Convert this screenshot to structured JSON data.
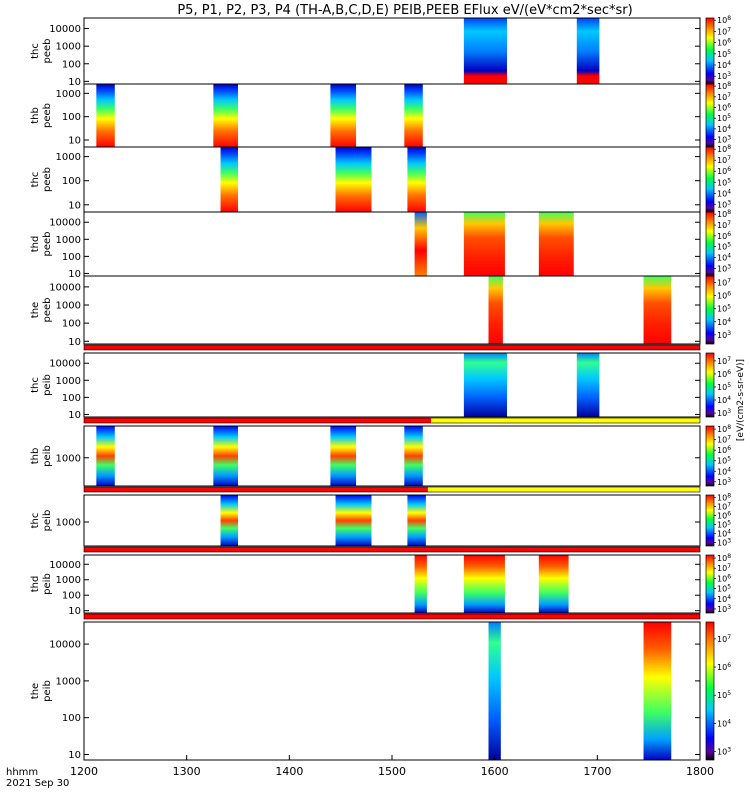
{
  "chart_data": {
    "type": "heatmap",
    "title": "P5, P1, P2, P3, P4 (TH-A,B,C,D,E) PEIB,PEEB EFlux eV/(eV*cm2*sec*sr)",
    "x_axis": {
      "range": [
        1200,
        1800
      ],
      "ticks": [
        "1200",
        "1300",
        "1400",
        "1500",
        "1600",
        "1700",
        "1800"
      ],
      "label_units": "hhmm",
      "label_date": "2021 Sep 30"
    },
    "colorbar_label": "[eV/(cm2-s-sr-eV)]",
    "panels": [
      {
        "name": "thc peeb",
        "probe": "thc",
        "product": "peeb",
        "has_bar": false,
        "y_ticks": [
          "10000",
          "1000",
          "100",
          "10"
        ],
        "y_range_log10": [
          0.85,
          4.6
        ],
        "cbar_ticks": [
          "10^8",
          "10^7",
          "10^6",
          "10^5",
          "10^4",
          "10^3"
        ],
        "cbar_range_log10": [
          2.3,
          8.2
        ],
        "blocks": [
          {
            "x0": 1570,
            "x1": 1612,
            "style": "peeb_hi"
          },
          {
            "x0": 1680,
            "x1": 1702,
            "style": "peeb_hi"
          }
        ]
      },
      {
        "name": "thb peeb",
        "probe": "thb",
        "product": "peeb",
        "has_bar": false,
        "y_ticks": [
          "1000",
          "100",
          "10"
        ],
        "y_range_log10": [
          0.7,
          3.4
        ],
        "cbar_ticks": [
          "10^8",
          "10^7",
          "10^6",
          "10^5",
          "10^4",
          "10^3"
        ],
        "cbar_range_log10": [
          2.3,
          8.2
        ],
        "blocks": [
          {
            "x0": 1212,
            "x1": 1230,
            "style": "peeb_full"
          },
          {
            "x0": 1326,
            "x1": 1350,
            "style": "peeb_full"
          },
          {
            "x0": 1440,
            "x1": 1465,
            "style": "peeb_full"
          },
          {
            "x0": 1512,
            "x1": 1530,
            "style": "peeb_full"
          }
        ]
      },
      {
        "name": "thc peeb",
        "probe": "thc",
        "product": "peeb",
        "has_bar": false,
        "y_ticks": [
          "1000",
          "100",
          "10"
        ],
        "y_range_log10": [
          0.7,
          3.4
        ],
        "cbar_ticks": [
          "10^8",
          "10^7",
          "10^6",
          "10^5",
          "10^4",
          "10^3"
        ],
        "cbar_range_log10": [
          2.3,
          8.2
        ],
        "blocks": [
          {
            "x0": 1333,
            "x1": 1350,
            "style": "peeb_full"
          },
          {
            "x0": 1445,
            "x1": 1480,
            "style": "peeb_full"
          },
          {
            "x0": 1515,
            "x1": 1533,
            "style": "peeb_full"
          }
        ]
      },
      {
        "name": "thd peeb",
        "probe": "thd",
        "product": "peeb",
        "has_bar": false,
        "y_ticks": [
          "10000",
          "1000",
          "100",
          "10"
        ],
        "y_range_log10": [
          0.85,
          4.6
        ],
        "cbar_ticks": [
          "10^8",
          "10^7",
          "10^6",
          "10^5",
          "10^4",
          "10^3"
        ],
        "cbar_range_log10": [
          2.3,
          8.2
        ],
        "blocks": [
          {
            "x0": 1522,
            "x1": 1534,
            "style": "peeb_peak"
          },
          {
            "x0": 1570,
            "x1": 1610,
            "style": "peeb_warm"
          },
          {
            "x0": 1643,
            "x1": 1677,
            "style": "peeb_warm"
          }
        ]
      },
      {
        "name": "the peeb",
        "probe": "the",
        "product": "peeb",
        "has_bar": false,
        "y_ticks": [
          "10000",
          "1000",
          "100",
          "10"
        ],
        "y_range_log10": [
          0.85,
          4.6
        ],
        "cbar_ticks": [
          "10^7",
          "10^6",
          "10^5",
          "10^4",
          "10^3"
        ],
        "cbar_range_log10": [
          2.3,
          7.5
        ],
        "blocks": [
          {
            "x0": 1594,
            "x1": 1608,
            "style": "peeb_warm"
          },
          {
            "x0": 1745,
            "x1": 1772,
            "style": "peeb_warm"
          }
        ]
      },
      {
        "name": "thc peib",
        "probe": "thc",
        "product": "peib",
        "has_bar": true,
        "bar_segments": [
          {
            "x0": 1200,
            "x1": 1800,
            "color": "#ff0000"
          }
        ],
        "y_ticks": [
          "10000",
          "1000",
          "100",
          "10"
        ],
        "y_range_log10": [
          0.85,
          4.6
        ],
        "cbar_ticks": [
          "10^7",
          "10^6",
          "10^5",
          "10^4",
          "10^3"
        ],
        "cbar_range_log10": [
          2.7,
          7.6
        ],
        "blocks": [
          {
            "x0": 1570,
            "x1": 1612,
            "style": "peib_cool"
          },
          {
            "x0": 1680,
            "x1": 1702,
            "style": "peib_cool"
          }
        ]
      },
      {
        "name": "thb peib",
        "probe": "thb",
        "product": "peib",
        "has_bar": true,
        "bar_segments": [
          {
            "x0": 1200,
            "x1": 1538,
            "color": "#ff0000"
          },
          {
            "x0": 1538,
            "x1": 1800,
            "color": "#ffff00"
          }
        ],
        "y_ticks": [
          "1000"
        ],
        "y_range_log10": [
          2.2,
          3.9
        ],
        "cbar_ticks": [
          "10^8",
          "10^7",
          "10^6",
          "10^5",
          "10^4",
          "10^3"
        ],
        "cbar_range_log10": [
          2.6,
          8.3
        ],
        "blocks": [
          {
            "x0": 1212,
            "x1": 1230,
            "style": "peib_mid"
          },
          {
            "x0": 1326,
            "x1": 1350,
            "style": "peib_mid"
          },
          {
            "x0": 1440,
            "x1": 1465,
            "style": "peib_mid"
          },
          {
            "x0": 1512,
            "x1": 1530,
            "style": "peib_mid"
          }
        ]
      },
      {
        "name": "thc peib",
        "probe": "thc",
        "product": "peib",
        "has_bar": true,
        "bar_segments": [
          {
            "x0": 1200,
            "x1": 1535,
            "color": "#ff0000"
          },
          {
            "x0": 1535,
            "x1": 1800,
            "color": "#ffff00"
          }
        ],
        "y_ticks": [
          "1000"
        ],
        "y_range_log10": [
          2.2,
          3.9
        ],
        "cbar_ticks": [
          "10^8",
          "10^7",
          "10^6",
          "10^5",
          "10^4",
          "10^3"
        ],
        "cbar_range_log10": [
          2.6,
          8.3
        ],
        "blocks": [
          {
            "x0": 1333,
            "x1": 1350,
            "style": "peib_mid"
          },
          {
            "x0": 1445,
            "x1": 1480,
            "style": "peib_mid"
          },
          {
            "x0": 1515,
            "x1": 1533,
            "style": "peib_mid"
          }
        ]
      },
      {
        "name": "thd peib",
        "probe": "thd",
        "product": "peib",
        "has_bar": true,
        "bar_segments": [
          {
            "x0": 1200,
            "x1": 1800,
            "color": "#ff0000"
          }
        ],
        "y_ticks": [
          "10000",
          "1000",
          "100",
          "10"
        ],
        "y_range_log10": [
          0.85,
          4.6
        ],
        "cbar_ticks": [
          "10^8",
          "10^7",
          "10^6",
          "10^5",
          "10^4",
          "10^3"
        ],
        "cbar_range_log10": [
          2.6,
          8.3
        ],
        "blocks": [
          {
            "x0": 1522,
            "x1": 1534,
            "style": "peib_warm"
          },
          {
            "x0": 1570,
            "x1": 1610,
            "style": "peib_warm"
          },
          {
            "x0": 1643,
            "x1": 1672,
            "style": "peib_warm"
          }
        ]
      },
      {
        "name": "the peib",
        "probe": "the",
        "product": "peib",
        "has_bar": true,
        "bar_segments": [
          {
            "x0": 1200,
            "x1": 1800,
            "color": "#ff0000"
          }
        ],
        "y_ticks": [
          "10000",
          "1000",
          "100",
          "10"
        ],
        "y_range_log10": [
          0.85,
          4.6
        ],
        "cbar_ticks": [
          "10^7",
          "10^6",
          "10^5",
          "10^4",
          "10^3"
        ],
        "cbar_range_log10": [
          2.7,
          7.6
        ],
        "blocks": [
          {
            "x0": 1594,
            "x1": 1606,
            "style": "peib_cool"
          },
          {
            "x0": 1745,
            "x1": 1772,
            "style": "peib_warm"
          }
        ]
      }
    ]
  }
}
